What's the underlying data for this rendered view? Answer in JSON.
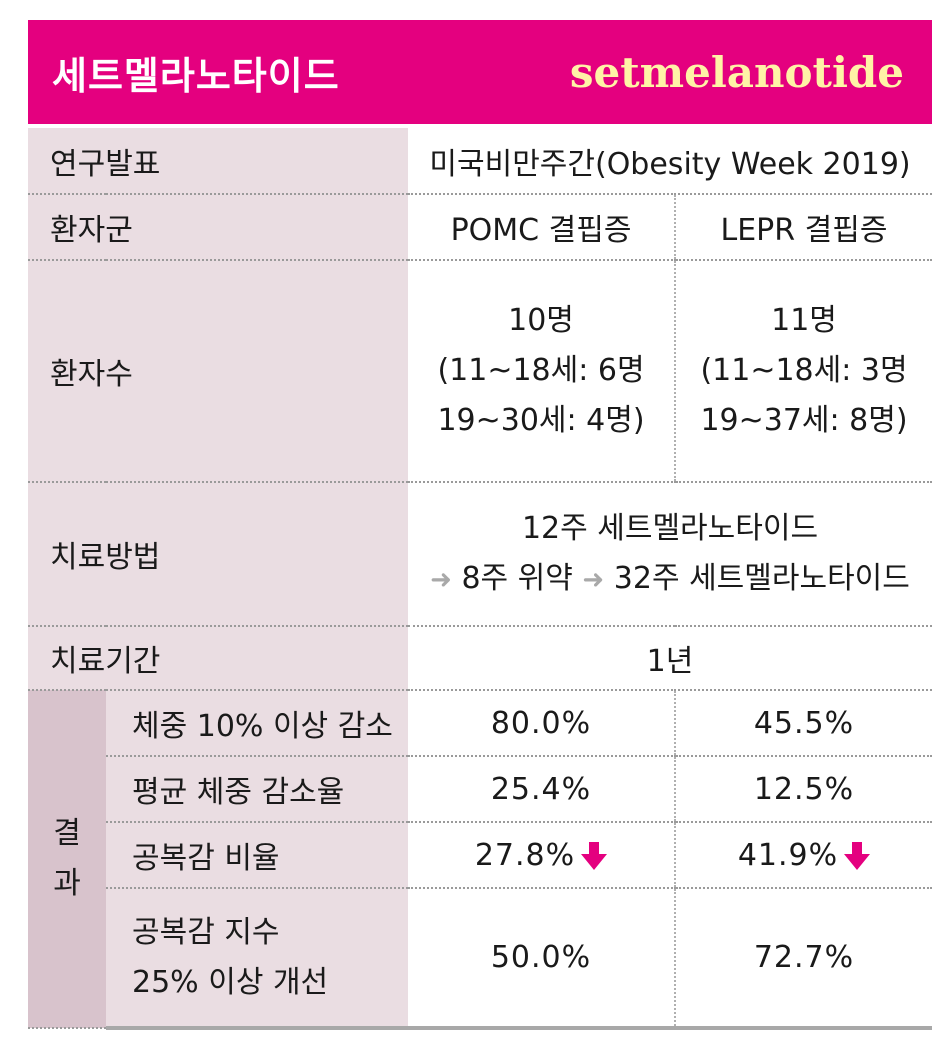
{
  "header": {
    "title_ko": "세트멜라노타이드",
    "title_en": "setmelanotide"
  },
  "rows": {
    "study": {
      "label": "연구발표",
      "value": "미국비만주간(Obesity Week 2019)"
    },
    "group": {
      "label": "환자군",
      "pomc": "POMC 결핍증",
      "lepr": "LEPR 결핍증"
    },
    "count": {
      "label": "환자수",
      "pomc": [
        "10명",
        "(11~18세: 6명",
        "19~30세: 4명)"
      ],
      "lepr": [
        "11명",
        "(11~18세: 3명",
        "19~37세: 8명)"
      ]
    },
    "method": {
      "label": "치료방법",
      "line1": "12주 세트멜라노타이드",
      "line2_a": "8주 위약",
      "line2_b": "32주 세트멜라노타이드",
      "arrow_icon": "arrow-right-icon"
    },
    "period": {
      "label": "치료기간",
      "value": "1년"
    }
  },
  "results": {
    "label_top": "결",
    "label_bottom": "과",
    "items": [
      {
        "label": "체중 10% 이상 감소",
        "pomc": "80.0%",
        "lepr": "45.5%"
      },
      {
        "label": "평균 체중 감소율",
        "pomc": "25.4%",
        "lepr": "12.5%"
      },
      {
        "label": "공복감 비율",
        "pomc": "27.8%",
        "lepr": "41.9%",
        "icon": "arrow-down-icon"
      },
      {
        "label_line1": "공복감 지수",
        "label_line2": "25% 이상 개선",
        "pomc": "50.0%",
        "lepr": "72.7%"
      }
    ]
  },
  "colors": {
    "accent": "#e4007f",
    "title_en": "#fff3a6",
    "label_bg": "#eadde2",
    "result_bg": "#d8c3cc"
  }
}
